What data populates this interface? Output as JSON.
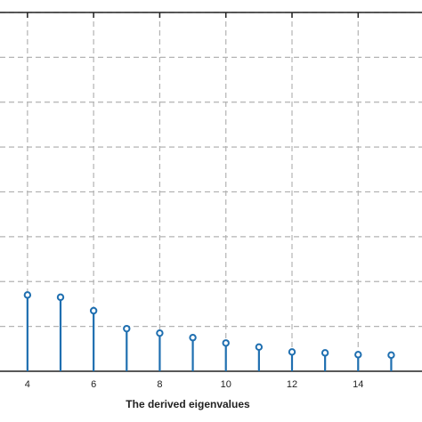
{
  "chart_data": {
    "type": "stem",
    "title": "",
    "xlabel": "The derived eigenvalues",
    "ylabel": "",
    "xlim": [
      2.9,
      16.2
    ],
    "ylim": [
      0,
      8
    ],
    "grid": true,
    "x_ticks": [
      4,
      6,
      8,
      10,
      12,
      14
    ],
    "x_tick_labels": [
      "4",
      "6",
      "8",
      "10",
      "12",
      "14"
    ],
    "x_grid": [
      4,
      6,
      8,
      10,
      12,
      14,
      16
    ],
    "y_grid": [
      1,
      2,
      3,
      4,
      5,
      6,
      7,
      8
    ],
    "x": [
      4,
      5,
      6,
      7,
      8,
      9,
      10,
      11,
      12,
      13,
      14,
      15
    ],
    "values": [
      1.7,
      1.65,
      1.35,
      0.95,
      0.85,
      0.75,
      0.63,
      0.54,
      0.43,
      0.41,
      0.37,
      0.36
    ],
    "colors": {
      "stem": "#1f6fb0",
      "grid": "#b3b3b3",
      "axis": "#222222"
    }
  }
}
